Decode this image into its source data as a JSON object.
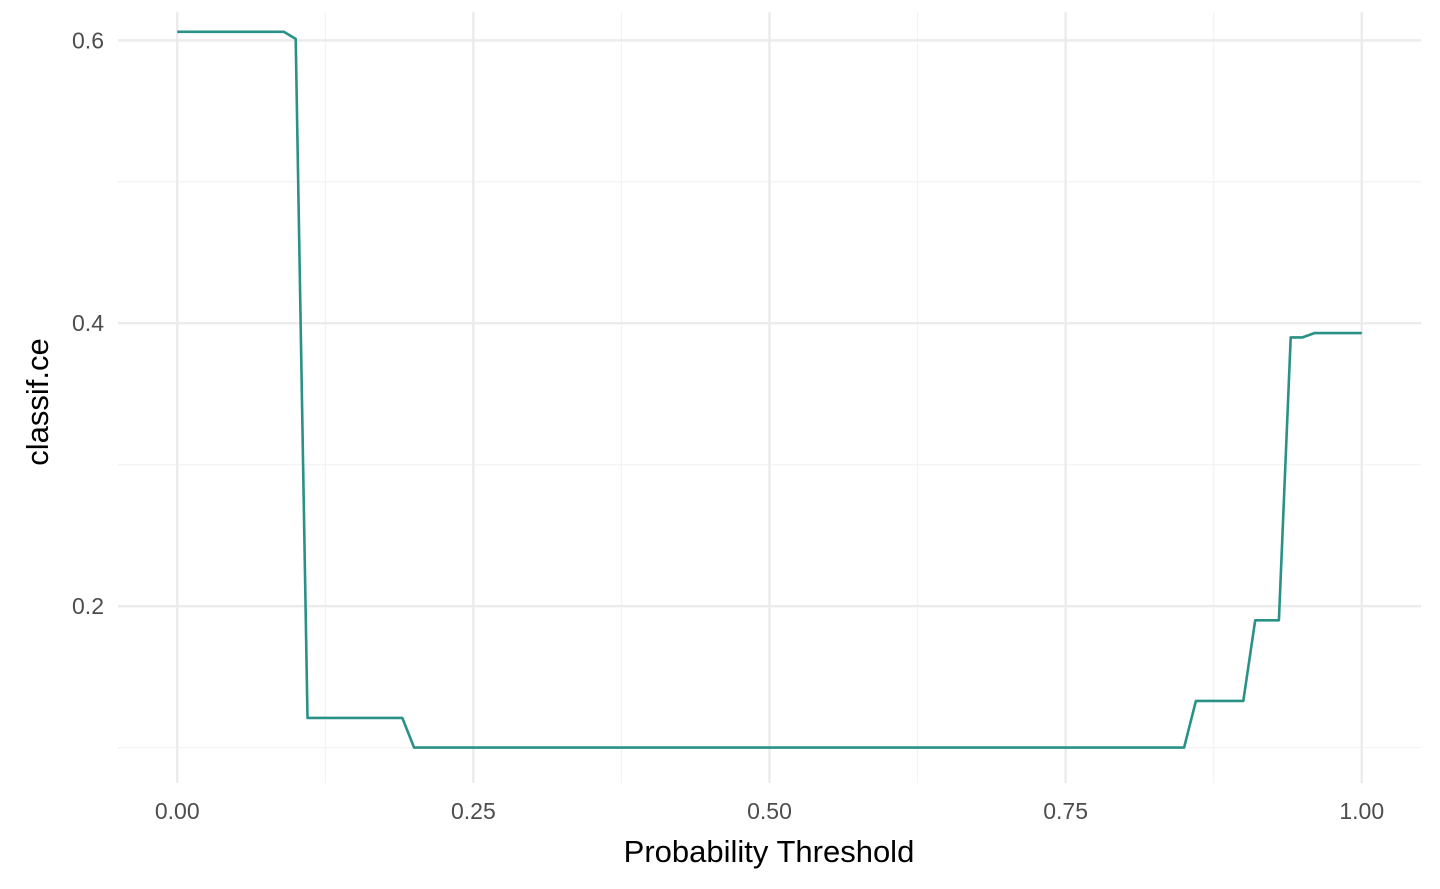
{
  "chart_data": {
    "type": "line",
    "title": "",
    "xlabel": "Probability Threshold",
    "ylabel": "classif.ce",
    "xlim": [
      -0.05,
      1.05
    ],
    "ylim": [
      0.075,
      0.62
    ],
    "x_major_ticks": [
      0.0,
      0.25,
      0.5,
      0.75,
      1.0
    ],
    "x_tick_labels": [
      "0.00",
      "0.25",
      "0.50",
      "0.75",
      "1.00"
    ],
    "x_minor_ticks": [
      0.125,
      0.375,
      0.625,
      0.875
    ],
    "y_major_ticks": [
      0.2,
      0.4,
      0.6
    ],
    "y_tick_labels": [
      "0.2",
      "0.4",
      "0.6"
    ],
    "y_minor_ticks": [
      0.1,
      0.3,
      0.5
    ],
    "grid": true,
    "legend": "none",
    "line_color": "#2a9187",
    "series": [
      {
        "x": [
          0.0,
          0.09,
          0.1,
          0.11,
          0.19,
          0.2,
          0.85,
          0.86,
          0.9,
          0.91,
          0.93,
          0.94,
          0.95,
          0.96,
          1.0
        ],
        "values": [
          0.606,
          0.606,
          0.601,
          0.121,
          0.121,
          0.1,
          0.1,
          0.133,
          0.133,
          0.19,
          0.19,
          0.39,
          0.39,
          0.393,
          0.393
        ]
      }
    ]
  }
}
